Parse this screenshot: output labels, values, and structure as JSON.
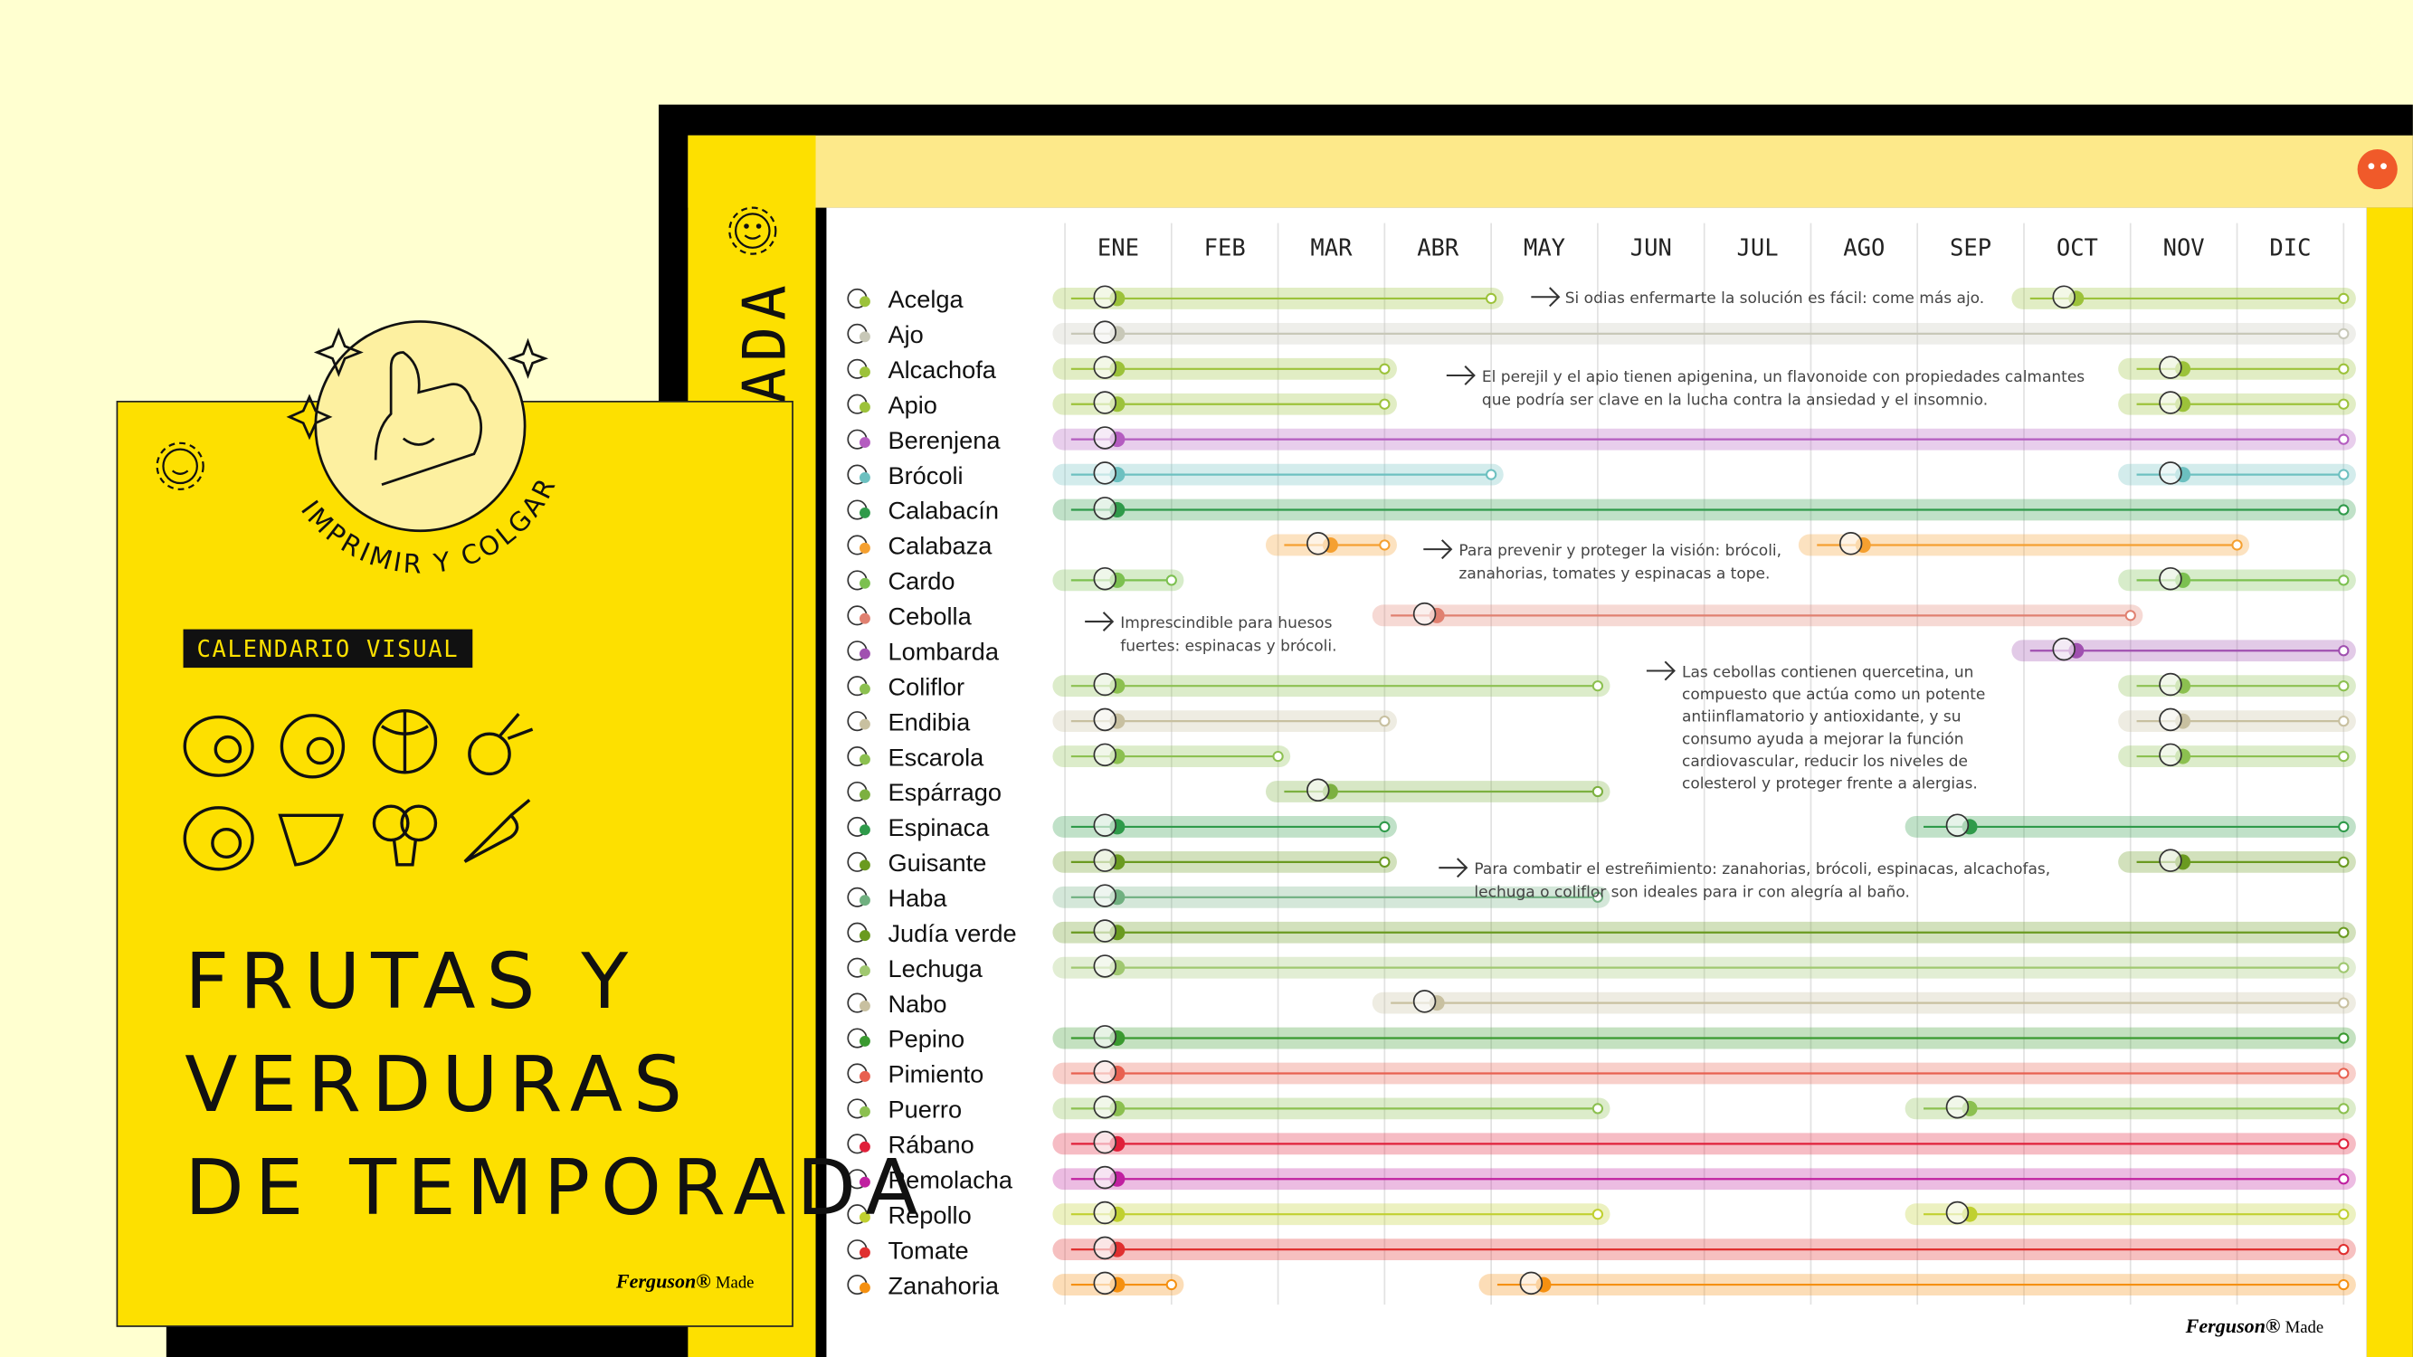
{
  "cover": {
    "badge": "IMPRIMIR Y COLGAR",
    "label": "CALENDARIO VISUAL",
    "title_lines": [
      "FRUTAS Y",
      "VERDURAS",
      "DE TEMPORADA"
    ],
    "brand": "Ferguson®",
    "brand_suffix": "Made"
  },
  "poster": {
    "side_title": "ADA",
    "months": [
      "ENE",
      "FEB",
      "MAR",
      "ABR",
      "MAY",
      "JUN",
      "JUL",
      "AGO",
      "SEP",
      "OCT",
      "NOV",
      "DIC"
    ],
    "rows": [
      {
        "name": "Acelga",
        "color": "#9cc23a",
        "ranges": [
          [
            0,
            4
          ],
          [
            9,
            12
          ]
        ]
      },
      {
        "name": "Ajo",
        "color": "#c8c8b8",
        "ranges": [
          [
            0,
            12
          ]
        ]
      },
      {
        "name": "Alcachofa",
        "color": "#9cc23a",
        "ranges": [
          [
            0,
            3
          ],
          [
            10,
            12
          ]
        ]
      },
      {
        "name": "Apio",
        "color": "#9cc23a",
        "ranges": [
          [
            0,
            3
          ],
          [
            10,
            12
          ]
        ]
      },
      {
        "name": "Berenjena",
        "color": "#b45cc0",
        "ranges": [
          [
            0,
            12
          ]
        ]
      },
      {
        "name": "Brócoli",
        "color": "#6cc0c0",
        "ranges": [
          [
            0,
            4
          ],
          [
            10,
            12
          ]
        ]
      },
      {
        "name": "Calabacín",
        "color": "#2f9a4a",
        "ranges": [
          [
            0,
            12
          ]
        ]
      },
      {
        "name": "Calabaza",
        "color": "#f5a030",
        "ranges": [
          [
            2,
            3
          ],
          [
            7,
            11
          ]
        ]
      },
      {
        "name": "Cardo",
        "color": "#7cc050",
        "ranges": [
          [
            0,
            1
          ],
          [
            10,
            12
          ]
        ]
      },
      {
        "name": "Cebolla",
        "color": "#e08070",
        "ranges": [
          [
            3,
            10
          ]
        ]
      },
      {
        "name": "Lombarda",
        "color": "#a050b0",
        "ranges": [
          [
            9,
            12
          ]
        ]
      },
      {
        "name": "Coliflor",
        "color": "#8cc050",
        "ranges": [
          [
            0,
            5
          ],
          [
            10,
            12
          ]
        ]
      },
      {
        "name": "Endibia",
        "color": "#c8c0a0",
        "ranges": [
          [
            0,
            3
          ],
          [
            10,
            12
          ]
        ]
      },
      {
        "name": "Escarola",
        "color": "#8cc050",
        "ranges": [
          [
            0,
            2
          ],
          [
            10,
            12
          ]
        ]
      },
      {
        "name": "Espárrago",
        "color": "#7cb040",
        "ranges": [
          [
            2,
            5
          ]
        ]
      },
      {
        "name": "Espinaca",
        "color": "#2f9a4a",
        "ranges": [
          [
            0,
            3
          ],
          [
            8,
            12
          ]
        ]
      },
      {
        "name": "Guisante",
        "color": "#6a9a20",
        "ranges": [
          [
            0,
            3
          ],
          [
            10,
            12
          ]
        ]
      },
      {
        "name": "Haba",
        "color": "#70b080",
        "ranges": [
          [
            0,
            5
          ]
        ]
      },
      {
        "name": "Judía verde",
        "color": "#6a9a20",
        "ranges": [
          [
            0,
            12
          ]
        ]
      },
      {
        "name": "Lechuga",
        "color": "#a0c870",
        "ranges": [
          [
            0,
            12
          ]
        ]
      },
      {
        "name": "Nabo",
        "color": "#c8c0a0",
        "ranges": [
          [
            3,
            12
          ]
        ]
      },
      {
        "name": "Pepino",
        "color": "#3a9a30",
        "ranges": [
          [
            0,
            12
          ]
        ]
      },
      {
        "name": "Pimiento",
        "color": "#e86050",
        "ranges": [
          [
            0,
            12
          ]
        ]
      },
      {
        "name": "Puerro",
        "color": "#8cc050",
        "ranges": [
          [
            0,
            5
          ],
          [
            8,
            12
          ]
        ]
      },
      {
        "name": "Rábano",
        "color": "#e0203a",
        "ranges": [
          [
            0,
            12
          ]
        ]
      },
      {
        "name": "Remolacha",
        "color": "#c020a0",
        "ranges": [
          [
            0,
            12
          ]
        ]
      },
      {
        "name": "Repollo",
        "color": "#c0d030",
        "ranges": [
          [
            0,
            5
          ],
          [
            8,
            12
          ]
        ]
      },
      {
        "name": "Tomate",
        "color": "#e03030",
        "ranges": [
          [
            0,
            12
          ]
        ]
      },
      {
        "name": "Zanahoria",
        "color": "#f59010",
        "ranges": [
          [
            0,
            1
          ],
          [
            4,
            12
          ]
        ]
      }
    ],
    "notes": [
      [
        "Si odias enfermarte la solución es fácil: come más ajo."
      ],
      [
        "El perejil y el apio tienen apigenina, un flavonoide con propiedades calmantes",
        "que podría ser clave en la lucha contra la ansiedad y el insomnio."
      ],
      [
        "Para prevenir y proteger la visión: brócoli,",
        "zanahorias, tomates y espinacas a tope."
      ],
      [
        "Imprescindible para huesos",
        "fuertes: espinacas y brócoli."
      ],
      [
        "Las cebollas contienen quercetina, un",
        "compuesto que actúa como un potente",
        "antiinflamatorio y antioxidante, y su",
        "consumo ayuda a mejorar la función",
        "cardiovascular, reducir los niveles de",
        "colesterol y proteger frente a alergias."
      ],
      [
        "Para combatir el estreñimiento: zanahorias, brócoli, espinacas, alcachofas,",
        "lechuga o coliflor son ideales para ir con alegría al baño."
      ]
    ],
    "brand": "Ferguson®",
    "brand_suffix": "Made"
  }
}
